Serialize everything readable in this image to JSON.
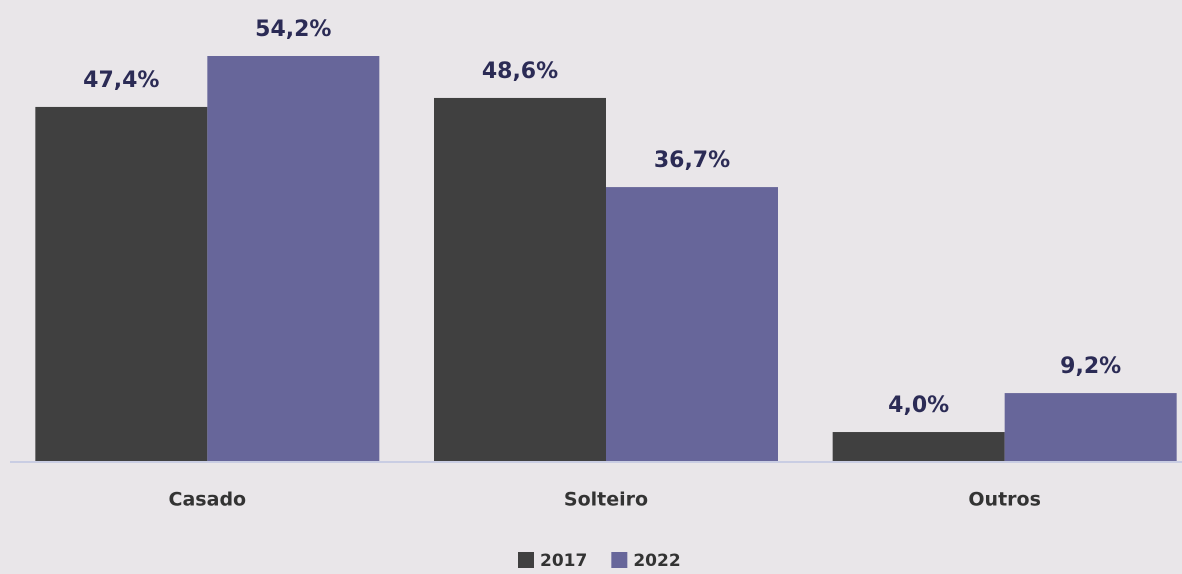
{
  "chart_data": {
    "type": "bar",
    "categories": [
      "Casado",
      "Solteiro",
      "Outros"
    ],
    "series": [
      {
        "name": "2017",
        "color": "#404040",
        "values": [
          47.4,
          48.6,
          4.0
        ],
        "value_labels": [
          "47,4%",
          "48,6%",
          "4,0%"
        ]
      },
      {
        "name": "2022",
        "color": "#67669a",
        "values": [
          54.2,
          36.7,
          9.2
        ],
        "value_labels": [
          "54,2%",
          "36,7%",
          "9,2%"
        ]
      }
    ],
    "legend": "bottom"
  }
}
